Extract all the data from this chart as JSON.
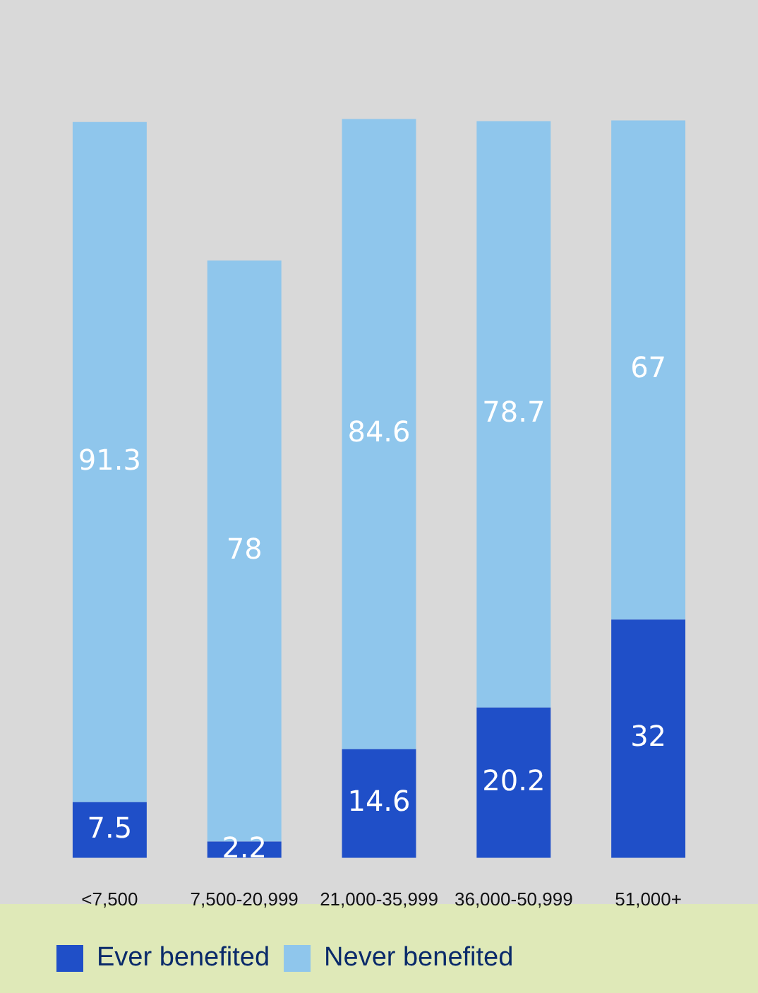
{
  "chart_data": {
    "type": "bar",
    "stacked": true,
    "data_labels": true,
    "legend": "bottom left",
    "categories": [
      "<7,500",
      "7,500-20,999",
      "21,000-35,999",
      "36,000-50,999",
      "51,000+"
    ],
    "series": [
      {
        "name": "Ever benefited",
        "color": "#1f4fc8",
        "values": [
          7.5,
          2.2,
          14.6,
          20.2,
          32
        ]
      },
      {
        "name": "Never benefited",
        "color": "#8fc6ec",
        "values": [
          91.3,
          78,
          84.6,
          78.7,
          67
        ]
      }
    ]
  }
}
